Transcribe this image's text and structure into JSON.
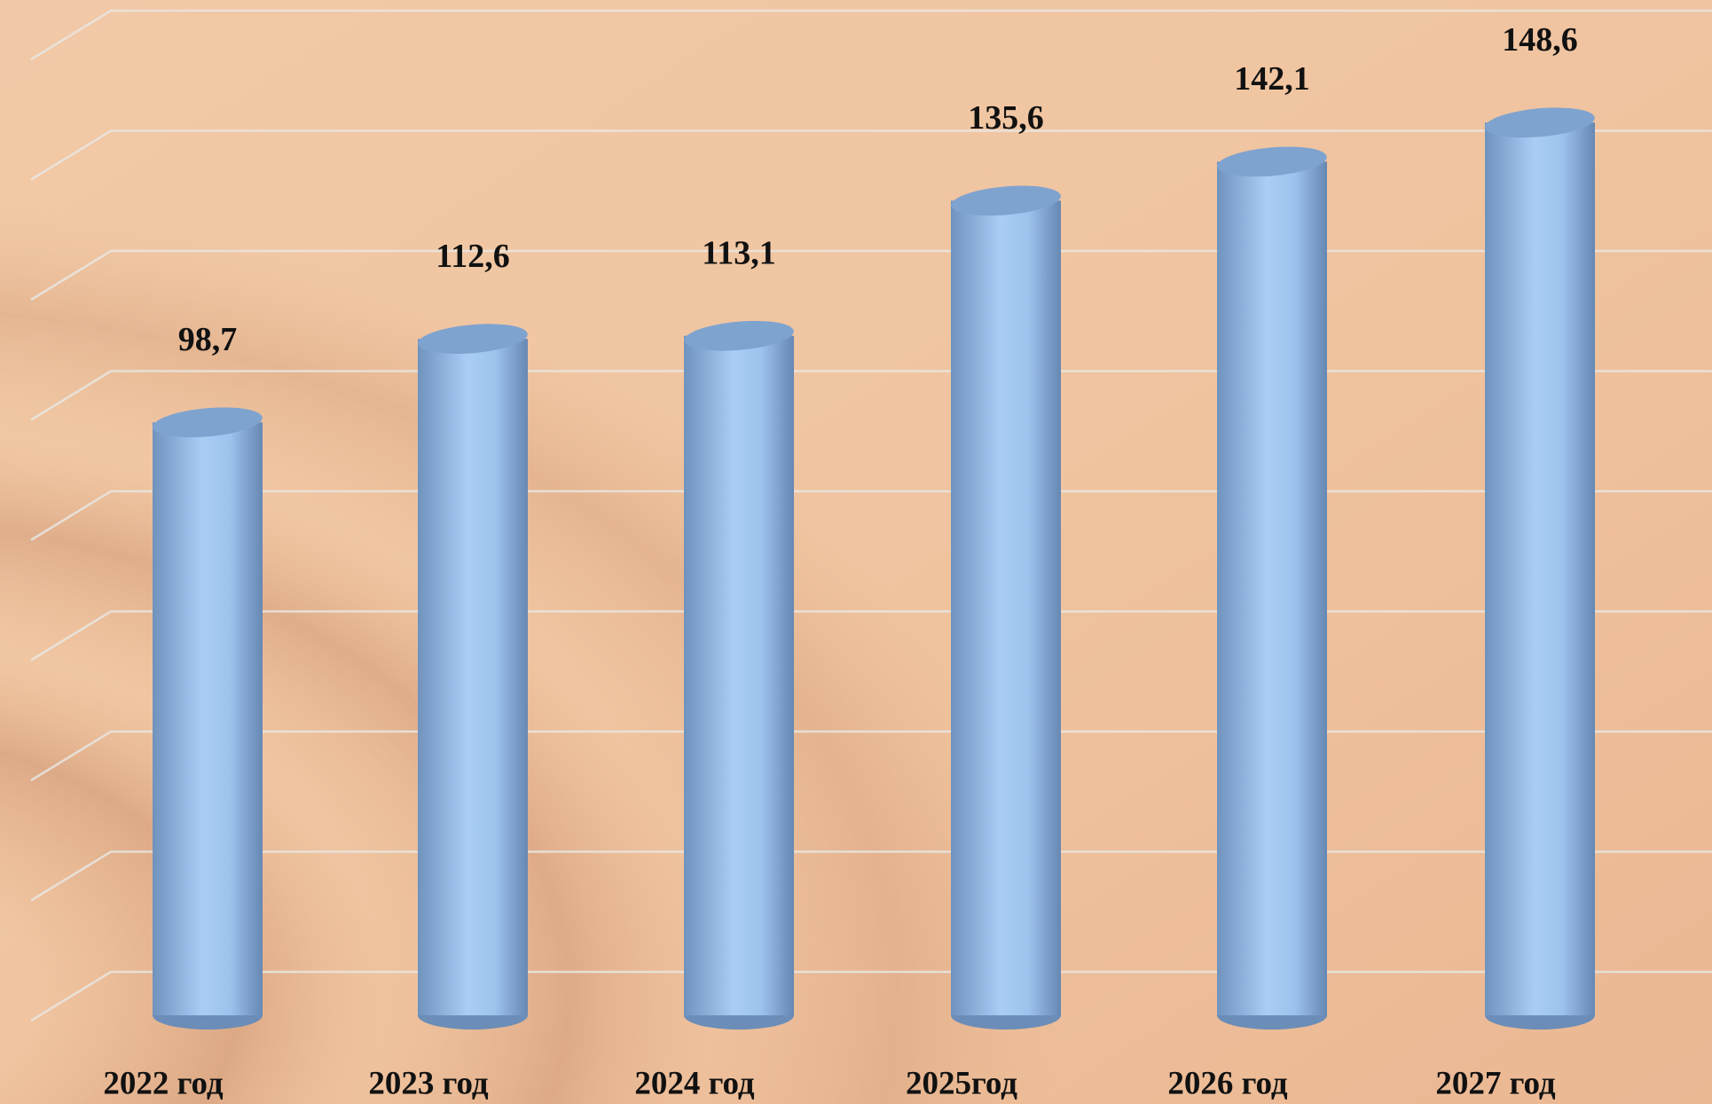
{
  "chart_data": {
    "type": "bar",
    "categories": [
      "2022 год",
      "2023 год",
      "2024 год",
      "2025год",
      "2026 год",
      "2027 год"
    ],
    "values": [
      98.7,
      112.6,
      113.1,
      135.6,
      142.1,
      148.6
    ],
    "value_labels": [
      "98,7",
      "112,6",
      "113,1",
      "135,6",
      "142,1",
      "148,6"
    ],
    "color": "#8fb8e6",
    "ylim": [
      0,
      160
    ],
    "yticks": [
      0,
      20,
      40,
      60,
      80,
      100,
      120,
      140,
      160
    ],
    "grid": true
  }
}
